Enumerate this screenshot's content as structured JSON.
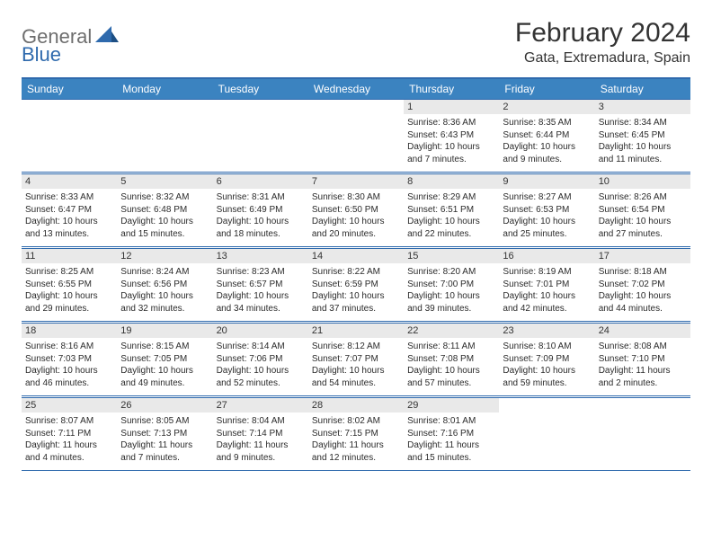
{
  "logo": {
    "part1": "General",
    "part2": "Blue"
  },
  "title": "February 2024",
  "subtitle": "Gata, Extremadura, Spain",
  "colors": {
    "header_bg": "#3b83c0",
    "border": "#2f6aad",
    "daynum_bg": "#e9e9e9",
    "text": "#2b2b2b",
    "logo_gray": "#6e6e6e",
    "logo_blue": "#2f6aad"
  },
  "weekdays": [
    "Sunday",
    "Monday",
    "Tuesday",
    "Wednesday",
    "Thursday",
    "Friday",
    "Saturday"
  ],
  "weeks": [
    [
      {
        "day": "",
        "sunrise": "",
        "sunset": "",
        "daylight": ""
      },
      {
        "day": "",
        "sunrise": "",
        "sunset": "",
        "daylight": ""
      },
      {
        "day": "",
        "sunrise": "",
        "sunset": "",
        "daylight": ""
      },
      {
        "day": "",
        "sunrise": "",
        "sunset": "",
        "daylight": ""
      },
      {
        "day": "1",
        "sunrise": "Sunrise: 8:36 AM",
        "sunset": "Sunset: 6:43 PM",
        "daylight": "Daylight: 10 hours and 7 minutes."
      },
      {
        "day": "2",
        "sunrise": "Sunrise: 8:35 AM",
        "sunset": "Sunset: 6:44 PM",
        "daylight": "Daylight: 10 hours and 9 minutes."
      },
      {
        "day": "3",
        "sunrise": "Sunrise: 8:34 AM",
        "sunset": "Sunset: 6:45 PM",
        "daylight": "Daylight: 10 hours and 11 minutes."
      }
    ],
    [
      {
        "day": "4",
        "sunrise": "Sunrise: 8:33 AM",
        "sunset": "Sunset: 6:47 PM",
        "daylight": "Daylight: 10 hours and 13 minutes."
      },
      {
        "day": "5",
        "sunrise": "Sunrise: 8:32 AM",
        "sunset": "Sunset: 6:48 PM",
        "daylight": "Daylight: 10 hours and 15 minutes."
      },
      {
        "day": "6",
        "sunrise": "Sunrise: 8:31 AM",
        "sunset": "Sunset: 6:49 PM",
        "daylight": "Daylight: 10 hours and 18 minutes."
      },
      {
        "day": "7",
        "sunrise": "Sunrise: 8:30 AM",
        "sunset": "Sunset: 6:50 PM",
        "daylight": "Daylight: 10 hours and 20 minutes."
      },
      {
        "day": "8",
        "sunrise": "Sunrise: 8:29 AM",
        "sunset": "Sunset: 6:51 PM",
        "daylight": "Daylight: 10 hours and 22 minutes."
      },
      {
        "day": "9",
        "sunrise": "Sunrise: 8:27 AM",
        "sunset": "Sunset: 6:53 PM",
        "daylight": "Daylight: 10 hours and 25 minutes."
      },
      {
        "day": "10",
        "sunrise": "Sunrise: 8:26 AM",
        "sunset": "Sunset: 6:54 PM",
        "daylight": "Daylight: 10 hours and 27 minutes."
      }
    ],
    [
      {
        "day": "11",
        "sunrise": "Sunrise: 8:25 AM",
        "sunset": "Sunset: 6:55 PM",
        "daylight": "Daylight: 10 hours and 29 minutes."
      },
      {
        "day": "12",
        "sunrise": "Sunrise: 8:24 AM",
        "sunset": "Sunset: 6:56 PM",
        "daylight": "Daylight: 10 hours and 32 minutes."
      },
      {
        "day": "13",
        "sunrise": "Sunrise: 8:23 AM",
        "sunset": "Sunset: 6:57 PM",
        "daylight": "Daylight: 10 hours and 34 minutes."
      },
      {
        "day": "14",
        "sunrise": "Sunrise: 8:22 AM",
        "sunset": "Sunset: 6:59 PM",
        "daylight": "Daylight: 10 hours and 37 minutes."
      },
      {
        "day": "15",
        "sunrise": "Sunrise: 8:20 AM",
        "sunset": "Sunset: 7:00 PM",
        "daylight": "Daylight: 10 hours and 39 minutes."
      },
      {
        "day": "16",
        "sunrise": "Sunrise: 8:19 AM",
        "sunset": "Sunset: 7:01 PM",
        "daylight": "Daylight: 10 hours and 42 minutes."
      },
      {
        "day": "17",
        "sunrise": "Sunrise: 8:18 AM",
        "sunset": "Sunset: 7:02 PM",
        "daylight": "Daylight: 10 hours and 44 minutes."
      }
    ],
    [
      {
        "day": "18",
        "sunrise": "Sunrise: 8:16 AM",
        "sunset": "Sunset: 7:03 PM",
        "daylight": "Daylight: 10 hours and 46 minutes."
      },
      {
        "day": "19",
        "sunrise": "Sunrise: 8:15 AM",
        "sunset": "Sunset: 7:05 PM",
        "daylight": "Daylight: 10 hours and 49 minutes."
      },
      {
        "day": "20",
        "sunrise": "Sunrise: 8:14 AM",
        "sunset": "Sunset: 7:06 PM",
        "daylight": "Daylight: 10 hours and 52 minutes."
      },
      {
        "day": "21",
        "sunrise": "Sunrise: 8:12 AM",
        "sunset": "Sunset: 7:07 PM",
        "daylight": "Daylight: 10 hours and 54 minutes."
      },
      {
        "day": "22",
        "sunrise": "Sunrise: 8:11 AM",
        "sunset": "Sunset: 7:08 PM",
        "daylight": "Daylight: 10 hours and 57 minutes."
      },
      {
        "day": "23",
        "sunrise": "Sunrise: 8:10 AM",
        "sunset": "Sunset: 7:09 PM",
        "daylight": "Daylight: 10 hours and 59 minutes."
      },
      {
        "day": "24",
        "sunrise": "Sunrise: 8:08 AM",
        "sunset": "Sunset: 7:10 PM",
        "daylight": "Daylight: 11 hours and 2 minutes."
      }
    ],
    [
      {
        "day": "25",
        "sunrise": "Sunrise: 8:07 AM",
        "sunset": "Sunset: 7:11 PM",
        "daylight": "Daylight: 11 hours and 4 minutes."
      },
      {
        "day": "26",
        "sunrise": "Sunrise: 8:05 AM",
        "sunset": "Sunset: 7:13 PM",
        "daylight": "Daylight: 11 hours and 7 minutes."
      },
      {
        "day": "27",
        "sunrise": "Sunrise: 8:04 AM",
        "sunset": "Sunset: 7:14 PM",
        "daylight": "Daylight: 11 hours and 9 minutes."
      },
      {
        "day": "28",
        "sunrise": "Sunrise: 8:02 AM",
        "sunset": "Sunset: 7:15 PM",
        "daylight": "Daylight: 11 hours and 12 minutes."
      },
      {
        "day": "29",
        "sunrise": "Sunrise: 8:01 AM",
        "sunset": "Sunset: 7:16 PM",
        "daylight": "Daylight: 11 hours and 15 minutes."
      },
      {
        "day": "",
        "sunrise": "",
        "sunset": "",
        "daylight": ""
      },
      {
        "day": "",
        "sunrise": "",
        "sunset": "",
        "daylight": ""
      }
    ]
  ]
}
